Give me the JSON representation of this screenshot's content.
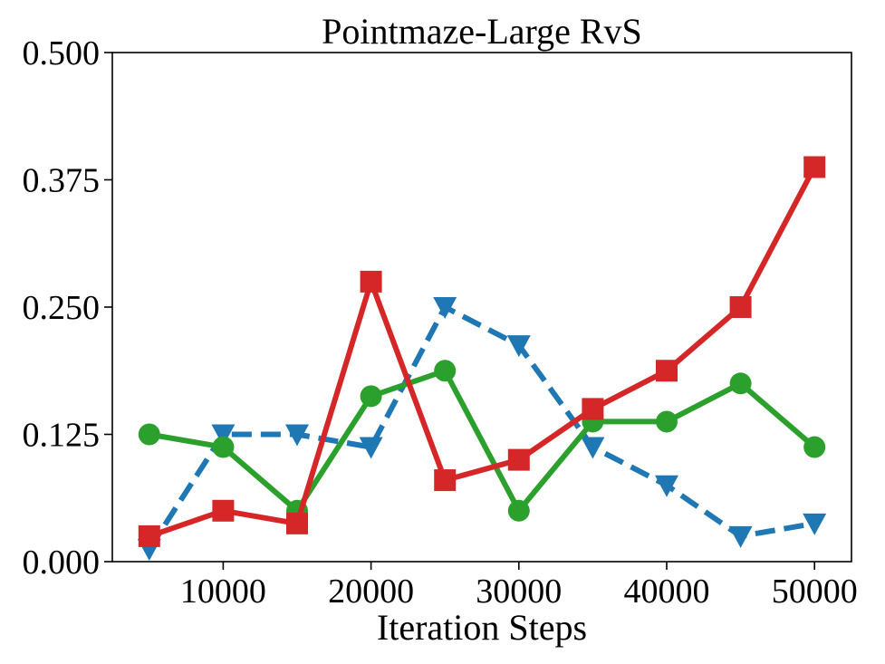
{
  "chart_data": {
    "type": "line",
    "title": "Pointmaze-Large RvS",
    "xlabel": "Iteration Steps",
    "ylabel": "",
    "xlim": [
      2500,
      52500
    ],
    "ylim": [
      0.0,
      0.5
    ],
    "xticks": [
      10000,
      20000,
      30000,
      40000,
      50000
    ],
    "xtick_labels": [
      "10000",
      "20000",
      "30000",
      "40000",
      "50000"
    ],
    "yticks": [
      0.0,
      0.125,
      0.25,
      0.375,
      0.5
    ],
    "ytick_labels": [
      "0.000",
      "0.125",
      "0.250",
      "0.375",
      "0.500"
    ],
    "x": [
      5000,
      10000,
      15000,
      20000,
      25000,
      30000,
      35000,
      40000,
      45000,
      50000
    ],
    "series": [
      {
        "name": "blue-dashed-triangle",
        "color": "#1f77b4",
        "linestyle": "dashed",
        "marker": "triangle-down",
        "values": [
          0.0125,
          0.125,
          0.125,
          0.1125,
          0.25,
          0.2125,
          0.1125,
          0.075,
          0.025,
          0.0375
        ]
      },
      {
        "name": "green-solid-circle",
        "color": "#2ca02c",
        "linestyle": "solid",
        "marker": "circle",
        "values": [
          0.125,
          0.1125,
          0.05,
          0.1625,
          0.1875,
          0.05,
          0.1375,
          0.1375,
          0.175,
          0.1125
        ]
      },
      {
        "name": "red-solid-square",
        "color": "#d62728",
        "linestyle": "solid",
        "marker": "square",
        "values": [
          0.025,
          0.05,
          0.0375,
          0.275,
          0.08,
          0.1,
          0.15,
          0.1875,
          0.25,
          0.3875
        ]
      }
    ]
  }
}
